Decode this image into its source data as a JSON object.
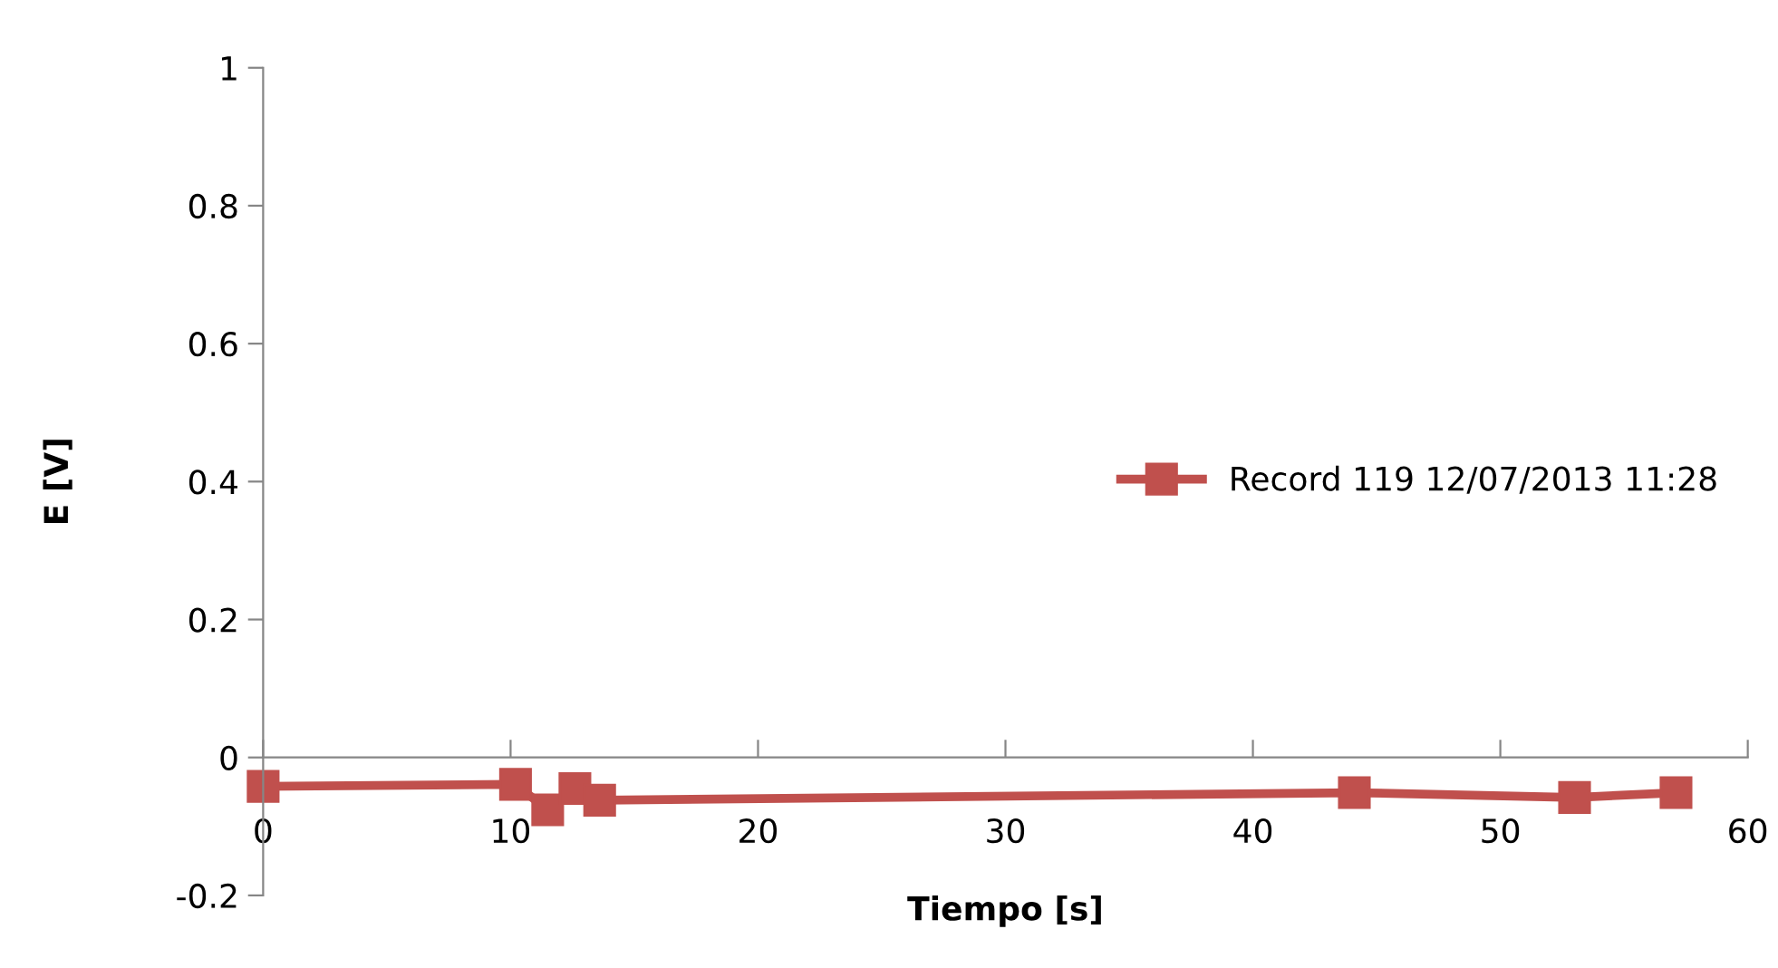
{
  "chart_data": {
    "type": "line",
    "xlabel": "Tiempo [s]",
    "ylabel": "E [V]",
    "x": [
      0,
      10.2,
      11.5,
      12.6,
      13.6,
      44.1,
      53,
      57.1
    ],
    "series": [
      {
        "name": "Record 119 12/07/2013 11:28",
        "color": "#c0504d",
        "values": [
          -0.042,
          -0.039,
          -0.076,
          -0.045,
          -0.062,
          -0.051,
          -0.058,
          -0.051
        ]
      }
    ],
    "xlim": [
      0,
      60
    ],
    "xticks": [
      0,
      10,
      20,
      30,
      40,
      50,
      60
    ],
    "ylim": [
      -0.2,
      1
    ],
    "yticks": [
      -0.2,
      0,
      0.2,
      0.4,
      0.6,
      0.8,
      1
    ],
    "marker": "square",
    "line_style": "solid",
    "grid": false,
    "legend": "right"
  }
}
